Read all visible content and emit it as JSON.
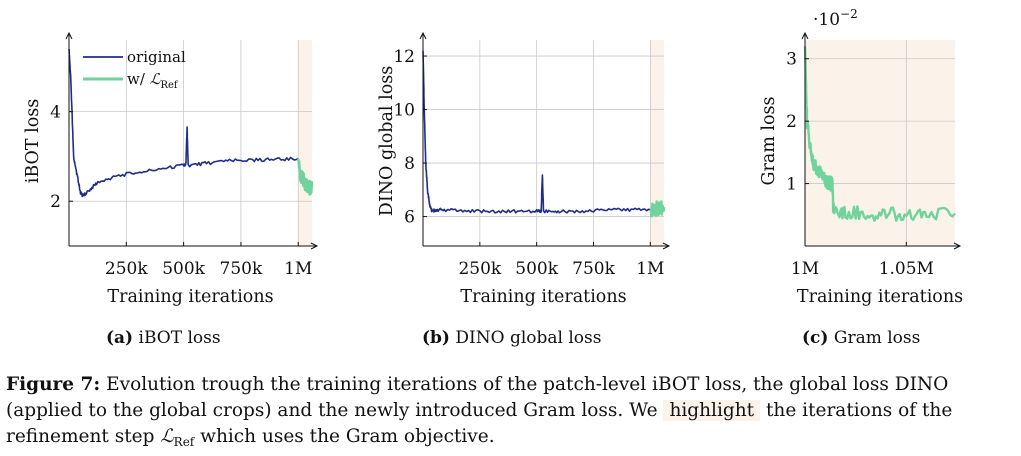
{
  "chart_data": [
    {
      "type": "line",
      "id": "a",
      "ylabel": "iBOT loss",
      "xlabel": "Training iterations",
      "xlim": [
        0,
        1060000
      ],
      "ylim": [
        1.0,
        5.6
      ],
      "xticks": [
        250000,
        500000,
        750000,
        1000000
      ],
      "xtick_labels": [
        "250k",
        "500k",
        "750k",
        "1M"
      ],
      "yticks": [
        2,
        4
      ],
      "ytick_labels": [
        "2",
        "4"
      ],
      "highlight_range": [
        1000000,
        1060000
      ],
      "legend": {
        "position": "top-left",
        "entries": [
          "original",
          "w/ "
        ],
        "ref_sub": "Ref",
        "ref_symbol": "ℒ"
      },
      "series": [
        {
          "name": "original",
          "color": "#1f2d8a",
          "x": [
            0,
            8000,
            20000,
            35000,
            50000,
            60000,
            80000,
            120000,
            200000,
            300000,
            400000,
            500000,
            510000,
            515000,
            520000,
            600000,
            700000,
            800000,
            900000,
            1000000
          ],
          "y": [
            5.4,
            4.7,
            3.0,
            2.6,
            2.2,
            2.12,
            2.2,
            2.4,
            2.55,
            2.65,
            2.72,
            2.8,
            2.82,
            3.65,
            2.8,
            2.85,
            2.9,
            2.92,
            2.93,
            2.95
          ]
        },
        {
          "name": "w/ L_Ref",
          "color": "#6fd39c",
          "x": [
            1000000,
            1010000,
            1020000,
            1030000,
            1040000,
            1050000,
            1060000
          ],
          "y": [
            2.95,
            2.55,
            2.5,
            2.4,
            2.35,
            2.3,
            2.3
          ]
        }
      ],
      "subcaption": {
        "label": "(a)",
        "text": "iBOT loss"
      }
    },
    {
      "type": "line",
      "id": "b",
      "ylabel": "DINO global loss",
      "xlabel": "Training iterations",
      "xlim": [
        0,
        1060000
      ],
      "ylim": [
        4.9,
        12.6
      ],
      "xticks": [
        250000,
        500000,
        750000,
        1000000
      ],
      "xtick_labels": [
        "250k",
        "500k",
        "750k",
        "1M"
      ],
      "yticks": [
        6,
        8,
        10,
        12
      ],
      "ytick_labels": [
        "6",
        "8",
        "10",
        "12"
      ],
      "highlight_range": [
        1000000,
        1060000
      ],
      "series": [
        {
          "name": "original",
          "color": "#1f2d8a",
          "x": [
            0,
            5000,
            12000,
            20000,
            30000,
            40000,
            60000,
            100000,
            200000,
            300000,
            400000,
            500000,
            520000,
            525000,
            530000,
            600000,
            700000,
            800000,
            900000,
            1000000
          ],
          "y": [
            12.2,
            10.2,
            8.0,
            7.0,
            6.4,
            6.2,
            6.25,
            6.25,
            6.2,
            6.2,
            6.2,
            6.2,
            6.2,
            7.6,
            6.2,
            6.2,
            6.2,
            6.25,
            6.25,
            6.25
          ]
        },
        {
          "name": "w/ L_Ref",
          "color": "#6fd39c",
          "x": [
            1000000,
            1015000,
            1030000,
            1045000,
            1060000
          ],
          "y": [
            6.25,
            6.3,
            6.3,
            6.3,
            6.35
          ]
        }
      ],
      "subcaption": {
        "label": "(b)",
        "text": "DINO global loss"
      }
    },
    {
      "type": "line",
      "id": "c",
      "ylabel": "Gram loss",
      "xlabel": "Training iterations",
      "xlim": [
        1000000,
        1074000
      ],
      "ylim": [
        0,
        3.3
      ],
      "scale_label": "·10",
      "scale_exp": "−2",
      "xticks": [
        1000000,
        1050000
      ],
      "xtick_labels": [
        "1M",
        "1.05M"
      ],
      "yticks": [
        1,
        2,
        3
      ],
      "ytick_labels": [
        "1",
        "2",
        "3"
      ],
      "highlight_range": [
        1000000,
        1074000
      ],
      "series": [
        {
          "name": "w/ L_Ref",
          "color": "#6fd39c",
          "x": [
            1000000,
            1001000,
            1002500,
            1004000,
            1006000,
            1008000,
            1010000,
            1012000,
            1013500,
            1014000,
            1020000,
            1030000,
            1040000,
            1050000,
            1060000,
            1074000
          ],
          "y": [
            3.2,
            2.0,
            1.6,
            1.35,
            1.25,
            1.15,
            1.05,
            1.0,
            1.0,
            0.58,
            0.55,
            0.52,
            0.52,
            0.52,
            0.52,
            0.52
          ]
        }
      ],
      "subcaption": {
        "label": "(c)",
        "text": "Gram loss"
      }
    }
  ],
  "caption": {
    "label": "Figure 7:",
    "text1": "Evolution trough the training iterations of the patch-level iBOT loss, the global loss DINO (applied to the global crops) and the newly introduced Gram loss.  We",
    "highlight": "highlight",
    "text2": "the iterations of the refinement step",
    "ref_symbol": "ℒ",
    "ref_sub": "Ref",
    "text3": "which uses the Gram objective."
  },
  "colors": {
    "original": "#1f2d8a",
    "refined": "#6fd39c",
    "highlight": "#fbf2ea",
    "axis": "#111111",
    "grid": "#c8c8c8"
  }
}
